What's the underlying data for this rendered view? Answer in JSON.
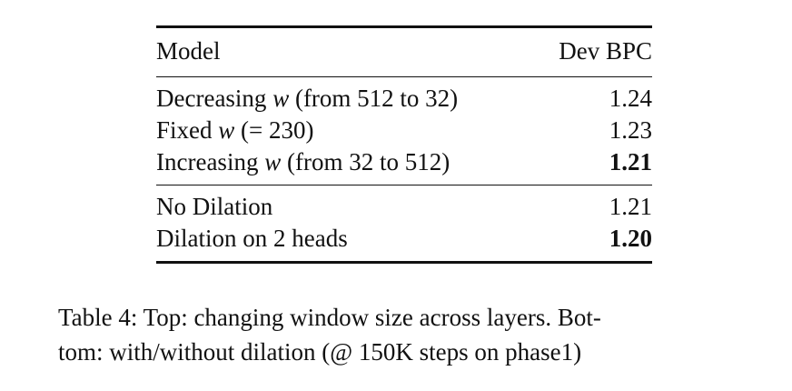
{
  "table": {
    "header": {
      "model": "Model",
      "metric": "Dev BPC"
    },
    "groups": [
      {
        "rows": [
          {
            "prefix": "Decreasing ",
            "var": "w",
            "suffix": " (from 512 to 32)",
            "value": "1.24",
            "bold": false
          },
          {
            "prefix": "Fixed ",
            "var": "w",
            "suffix": " (= 230)",
            "value": "1.23",
            "bold": false
          },
          {
            "prefix": "Increasing ",
            "var": "w",
            "suffix": " (from 32 to 512)",
            "value": "1.21",
            "bold": true
          }
        ]
      },
      {
        "rows": [
          {
            "prefix": "No Dilation",
            "var": "",
            "suffix": "",
            "value": "1.21",
            "bold": false
          },
          {
            "prefix": "Dilation on 2 heads",
            "var": "",
            "suffix": "",
            "value": "1.20",
            "bold": true
          }
        ]
      }
    ]
  },
  "caption": {
    "line1": "Table 4: Top: changing window size across layers. Bot-",
    "line2": "tom: with/without dilation (@ 150K steps on phase1)"
  }
}
